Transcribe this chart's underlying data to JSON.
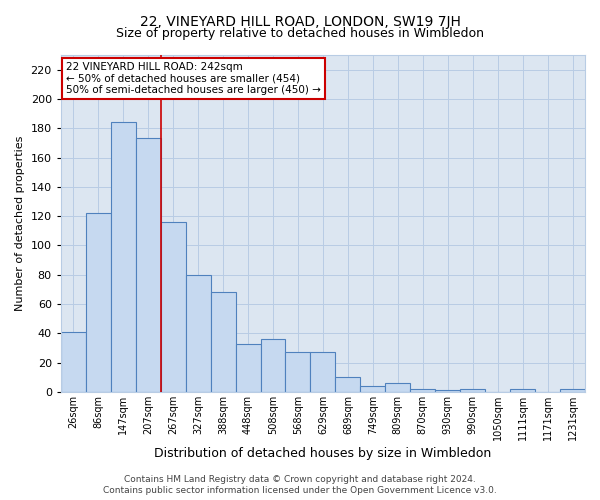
{
  "title": "22, VINEYARD HILL ROAD, LONDON, SW19 7JH",
  "subtitle": "Size of property relative to detached houses in Wimbledon",
  "xlabel": "Distribution of detached houses by size in Wimbledon",
  "ylabel": "Number of detached properties",
  "footer1": "Contains HM Land Registry data © Crown copyright and database right 2024.",
  "footer2": "Contains public sector information licensed under the Open Government Licence v3.0.",
  "categories": [
    "26sqm",
    "86sqm",
    "147sqm",
    "207sqm",
    "267sqm",
    "327sqm",
    "388sqm",
    "448sqm",
    "508sqm",
    "568sqm",
    "629sqm",
    "689sqm",
    "749sqm",
    "809sqm",
    "870sqm",
    "930sqm",
    "990sqm",
    "1050sqm",
    "1111sqm",
    "1171sqm",
    "1231sqm"
  ],
  "values": [
    41,
    122,
    184,
    173,
    116,
    80,
    68,
    33,
    36,
    27,
    27,
    10,
    4,
    6,
    2,
    1,
    2,
    0,
    2,
    0,
    2
  ],
  "bar_color": "#c6d9f0",
  "bar_edge_color": "#4f81bd",
  "bar_edge_width": 0.8,
  "grid_color": "#b8cce4",
  "background_color": "#dce6f1",
  "ylim": [
    0,
    230
  ],
  "yticks": [
    0,
    20,
    40,
    60,
    80,
    100,
    120,
    140,
    160,
    180,
    200,
    220
  ],
  "red_line_x": 3.5,
  "annotation_line1": "22 VINEYARD HILL ROAD: 242sqm",
  "annotation_line2": "← 50% of detached houses are smaller (454)",
  "annotation_line3": "50% of semi-detached houses are larger (450) →",
  "annotation_box_color": "#ffffff",
  "annotation_box_edge_color": "#cc0000",
  "title_fontsize": 10,
  "subtitle_fontsize": 9,
  "ylabel_fontsize": 8,
  "xlabel_fontsize": 9,
  "tick_fontsize": 7,
  "footer_fontsize": 6.5,
  "annotation_fontsize": 7.5
}
